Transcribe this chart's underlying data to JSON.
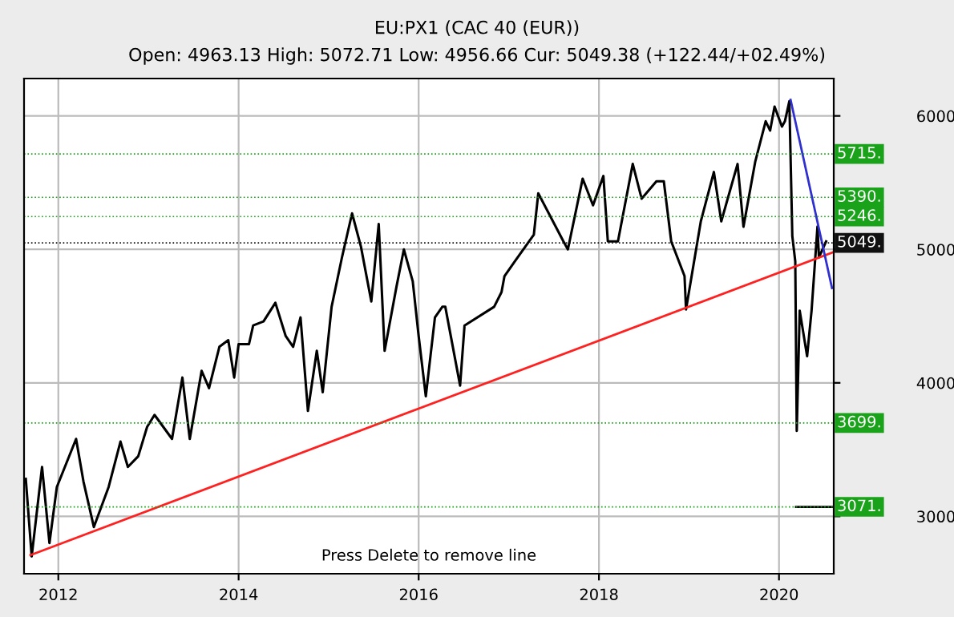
{
  "chart_data": {
    "type": "line",
    "title": "EU:PX1 (CAC 40 (EUR))",
    "subtitle": "Open: 4963.13 High: 5072.71 Low: 4956.66 Cur: 5049.38 (+122.44/+02.49%)",
    "series": [
      {
        "color": "#000000",
        "x": [
          "2011-08-22",
          "2011-09-15",
          "2011-10-27",
          "2011-11-26",
          "2011-12-26",
          "2012-03-13",
          "2012-04-12",
          "2012-05-24",
          "2012-07-23",
          "2012-09-09",
          "2012-10-09",
          "2012-11-20",
          "2012-12-26",
          "2013-01-25",
          "2013-04-06",
          "2013-05-18",
          "2013-06-17",
          "2013-08-04",
          "2013-09-03",
          "2013-10-15",
          "2013-11-20",
          "2013-12-14",
          "2014-01-01",
          "2014-02-12",
          "2014-03-01",
          "2014-04-12",
          "2014-05-30",
          "2014-07-11",
          "2014-08-10",
          "2014-09-09",
          "2014-10-09",
          "2014-11-14",
          "2014-12-08",
          "2015-01-13",
          "2015-02-24",
          "2015-04-06",
          "2015-05-12",
          "2015-06-23",
          "2015-07-23",
          "2015-08-16",
          "2015-10-03",
          "2015-11-02",
          "2015-12-08",
          "2016-01-01",
          "2016-01-30",
          "2016-03-07",
          "2016-04-06",
          "2016-04-18",
          "2016-06-17",
          "2016-07-05",
          "2016-11-02",
          "2016-12-02",
          "2016-12-14",
          "2017-01-25",
          "2017-04-12",
          "2017-04-30",
          "2017-08-10",
          "2017-08-28",
          "2017-10-27",
          "2017-12-08",
          "2018-01-19",
          "2018-02-06",
          "2018-03-19",
          "2018-05-18",
          "2018-06-23",
          "2018-08-22",
          "2018-09-21",
          "2018-10-21",
          "2018-12-14",
          "2018-12-20",
          "2019-02-18",
          "2019-04-12",
          "2019-05-12",
          "2019-07-17",
          "2019-08-10",
          "2019-09-27",
          "2019-11-08",
          "2019-11-26",
          "2019-12-14",
          "2020-01-13",
          "2020-01-25",
          "2020-02-12",
          "2020-02-24",
          "2020-03-07",
          "2020-03-13",
          "2020-03-25",
          "2020-04-24",
          "2020-05-12",
          "2020-06-05",
          "2020-06-11",
          "2020-07-10"
        ],
        "values": [
          3280,
          2700,
          3370,
          2800,
          3220,
          3580,
          3260,
          2920,
          3220,
          3560,
          3370,
          3450,
          3670,
          3760,
          3580,
          4040,
          3580,
          4090,
          3960,
          4270,
          4320,
          4040,
          4290,
          4290,
          4430,
          4460,
          4600,
          4350,
          4270,
          4490,
          3790,
          4240,
          3930,
          4570,
          4940,
          5270,
          5020,
          4610,
          5190,
          4240,
          4720,
          5000,
          4760,
          4350,
          3900,
          4490,
          4570,
          4570,
          3980,
          4430,
          4570,
          4680,
          4800,
          4910,
          5110,
          5420,
          5060,
          5000,
          5530,
          5330,
          5550,
          5060,
          5060,
          5640,
          5380,
          5510,
          5510,
          5060,
          4800,
          4550,
          5210,
          5580,
          5210,
          5640,
          5170,
          5660,
          5960,
          5890,
          6070,
          5920,
          5960,
          6110,
          5100,
          4910,
          3640,
          4540,
          4200,
          4540,
          5170,
          4940,
          5060
        ]
      },
      {
        "color": "#ff2020",
        "x": [
          "2011-09-10",
          "2020-08-10"
        ],
        "values": [
          2710,
          4980
        ]
      },
      {
        "color": "#3030d0",
        "x": [
          "2020-02-17",
          "2020-08-03"
        ],
        "values": [
          6120,
          4710
        ]
      },
      {
        "color": "#000000",
        "x": [
          "2020-03-10",
          "2020-08-10"
        ],
        "values": [
          3070,
          3070
        ]
      }
    ],
    "ref_lines": [
      {
        "axis": "y",
        "value": 5715,
        "label": "5715.",
        "color": "#1aa31a"
      },
      {
        "axis": "y",
        "value": 5390,
        "label": "5390.",
        "color": "#1aa31a"
      },
      {
        "axis": "y",
        "value": 5246,
        "label": "5246.",
        "color": "#1aa31a"
      },
      {
        "axis": "y",
        "value": 5049,
        "label": "5049.",
        "color": "#111111"
      },
      {
        "axis": "y",
        "value": 3699,
        "label": "3699.",
        "color": "#1aa31a"
      },
      {
        "axis": "y",
        "value": 3071,
        "label": "3071.",
        "color": "#1aa31a"
      }
    ],
    "xlim": [
      "2011-08-15",
      "2020-08-10"
    ],
    "ylim": [
      2570,
      6280
    ],
    "xticks": [
      {
        "value": "2012-01-01",
        "label": "2012"
      },
      {
        "value": "2014-01-01",
        "label": "2014"
      },
      {
        "value": "2016-01-01",
        "label": "2016"
      },
      {
        "value": "2018-01-01",
        "label": "2018"
      },
      {
        "value": "2020-01-01",
        "label": "2020"
      }
    ],
    "yticks": [
      3000,
      4000,
      5000,
      6000
    ],
    "grid": true,
    "marker": "none",
    "line_style": "solid",
    "annotations": [
      "Press Delete to remove line"
    ]
  }
}
